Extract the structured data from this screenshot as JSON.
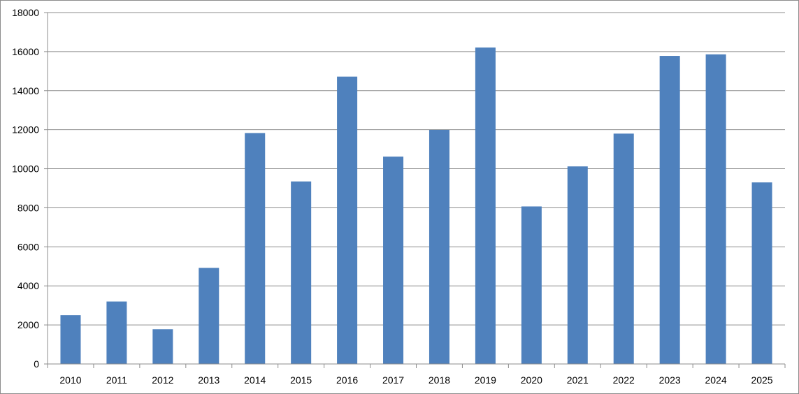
{
  "chart_data": {
    "type": "bar",
    "categories": [
      "2010",
      "2011",
      "2012",
      "2013",
      "2014",
      "2015",
      "2016",
      "2017",
      "2018",
      "2019",
      "2020",
      "2021",
      "2022",
      "2023",
      "2024",
      "2025"
    ],
    "values": [
      2500,
      3200,
      1780,
      4920,
      11830,
      9350,
      14720,
      10620,
      11990,
      16210,
      8070,
      10120,
      11800,
      15780,
      15860,
      9300
    ],
    "title": "",
    "xlabel": "",
    "ylabel": "",
    "ylim": [
      0,
      18000
    ],
    "yticks": [
      "0",
      "2000",
      "4000",
      "6000",
      "8000",
      "10000",
      "12000",
      "14000",
      "16000",
      "18000"
    ],
    "grid": true,
    "legend": "none",
    "colors": {
      "bar": "#4F81BD",
      "grid": "#8C8C8C",
      "axis": "#8C8C8C",
      "text": "#000000"
    }
  }
}
